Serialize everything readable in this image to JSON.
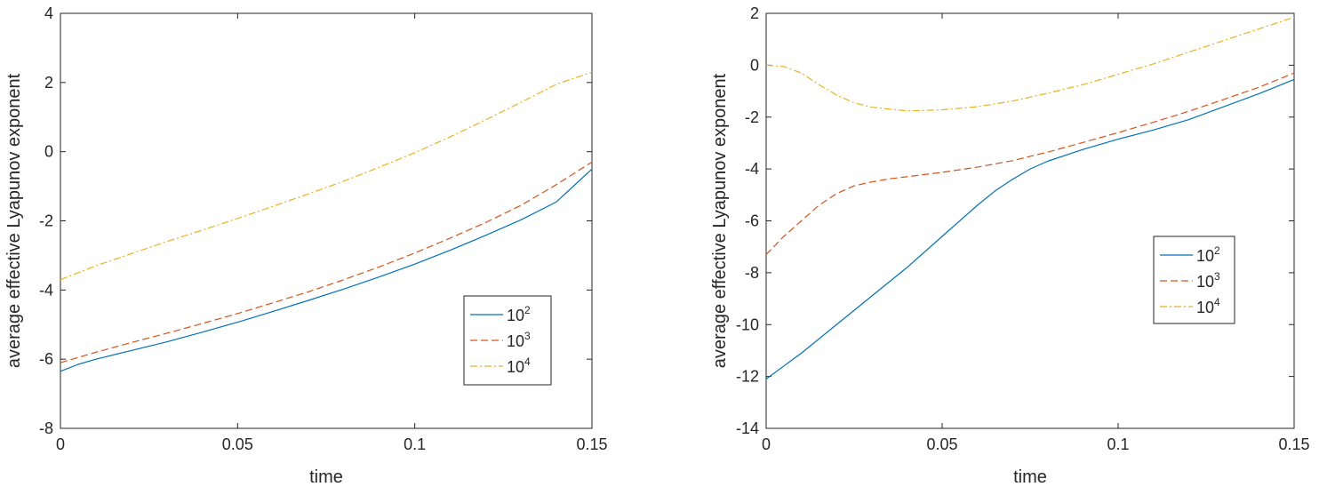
{
  "colors": {
    "series_1": "#0072BD",
    "series_2": "#D95319",
    "series_3": "#EDB120",
    "axis": "#262626"
  },
  "chart_data": [
    {
      "type": "line",
      "title": "",
      "xlabel": "time",
      "ylabel": "average effective Lyapunov exponent",
      "xlim": [
        0,
        0.15
      ],
      "ylim": [
        -8,
        4
      ],
      "xticks": [
        0,
        0.05,
        0.1,
        0.15
      ],
      "xtick_labels": [
        "0",
        "0.05",
        "0.1",
        "0.15"
      ],
      "yticks": [
        -8,
        -6,
        -4,
        -2,
        0,
        2,
        4
      ],
      "ytick_labels": [
        "-8",
        "-6",
        "-4",
        "-2",
        "0",
        "2",
        "4"
      ],
      "legend_position": "lower-right",
      "series": [
        {
          "name": "10^2",
          "base": "10",
          "exp": "2",
          "color": "#0072BD",
          "style": "solid",
          "x": [
            0,
            0.005,
            0.01,
            0.02,
            0.03,
            0.04,
            0.05,
            0.06,
            0.07,
            0.08,
            0.09,
            0.1,
            0.11,
            0.12,
            0.13,
            0.14,
            0.15
          ],
          "y": [
            -6.35,
            -6.15,
            -6.0,
            -5.75,
            -5.5,
            -5.22,
            -4.93,
            -4.62,
            -4.3,
            -3.97,
            -3.62,
            -3.25,
            -2.85,
            -2.42,
            -1.97,
            -1.45,
            -0.5
          ]
        },
        {
          "name": "10^3",
          "base": "10",
          "exp": "3",
          "color": "#D95319",
          "style": "dashed",
          "x": [
            0,
            0.005,
            0.01,
            0.02,
            0.03,
            0.04,
            0.05,
            0.06,
            0.07,
            0.08,
            0.09,
            0.1,
            0.11,
            0.12,
            0.13,
            0.14,
            0.15
          ],
          "y": [
            -6.1,
            -5.95,
            -5.8,
            -5.52,
            -5.25,
            -4.97,
            -4.68,
            -4.37,
            -4.05,
            -3.7,
            -3.33,
            -2.93,
            -2.5,
            -2.05,
            -1.55,
            -0.95,
            -0.3
          ]
        },
        {
          "name": "10^4",
          "base": "10",
          "exp": "4",
          "color": "#EDB120",
          "style": "dashdot",
          "x": [
            0,
            0.005,
            0.01,
            0.02,
            0.03,
            0.04,
            0.05,
            0.06,
            0.07,
            0.08,
            0.09,
            0.1,
            0.11,
            0.12,
            0.13,
            0.14,
            0.15
          ],
          "y": [
            -3.7,
            -3.5,
            -3.3,
            -2.95,
            -2.6,
            -2.27,
            -1.93,
            -1.58,
            -1.22,
            -0.85,
            -0.45,
            -0.03,
            0.43,
            0.92,
            1.43,
            1.95,
            2.3
          ]
        }
      ]
    },
    {
      "type": "line",
      "title": "",
      "xlabel": "time",
      "ylabel": "average effective Lyapunov exponent",
      "xlim": [
        0,
        0.15
      ],
      "ylim": [
        -14,
        2
      ],
      "xticks": [
        0,
        0.05,
        0.1,
        0.15
      ],
      "xtick_labels": [
        "0",
        "0.05",
        "0.1",
        "0.15"
      ],
      "yticks": [
        -14,
        -12,
        -10,
        -8,
        -6,
        -4,
        -2,
        0,
        2
      ],
      "ytick_labels": [
        "-14",
        "-12",
        "-10",
        "-8",
        "-6",
        "-4",
        "-2",
        "0",
        "2"
      ],
      "legend_position": "right",
      "series": [
        {
          "name": "10^2",
          "base": "10",
          "exp": "2",
          "color": "#0072BD",
          "style": "solid",
          "x": [
            0,
            0.005,
            0.01,
            0.02,
            0.03,
            0.04,
            0.05,
            0.06,
            0.065,
            0.07,
            0.075,
            0.08,
            0.09,
            0.1,
            0.11,
            0.12,
            0.13,
            0.14,
            0.15
          ],
          "y": [
            -12.1,
            -11.6,
            -11.1,
            -10.0,
            -8.9,
            -7.8,
            -6.6,
            -5.4,
            -4.85,
            -4.4,
            -4.0,
            -3.7,
            -3.25,
            -2.85,
            -2.5,
            -2.1,
            -1.6,
            -1.1,
            -0.55
          ]
        },
        {
          "name": "10^3",
          "base": "10",
          "exp": "3",
          "color": "#D95319",
          "style": "dashed",
          "x": [
            0,
            0.005,
            0.01,
            0.015,
            0.02,
            0.025,
            0.03,
            0.035,
            0.04,
            0.05,
            0.06,
            0.07,
            0.08,
            0.09,
            0.1,
            0.11,
            0.12,
            0.13,
            0.14,
            0.15
          ],
          "y": [
            -7.3,
            -6.6,
            -6.0,
            -5.4,
            -4.95,
            -4.65,
            -4.5,
            -4.38,
            -4.3,
            -4.13,
            -3.93,
            -3.68,
            -3.35,
            -2.98,
            -2.6,
            -2.2,
            -1.78,
            -1.32,
            -0.85,
            -0.3
          ]
        },
        {
          "name": "10^4",
          "base": "10",
          "exp": "4",
          "color": "#EDB120",
          "style": "dashdot",
          "x": [
            0,
            0.005,
            0.01,
            0.015,
            0.02,
            0.025,
            0.03,
            0.04,
            0.05,
            0.06,
            0.07,
            0.08,
            0.09,
            0.1,
            0.11,
            0.12,
            0.13,
            0.14,
            0.15
          ],
          "y": [
            0,
            -0.05,
            -0.3,
            -0.75,
            -1.15,
            -1.45,
            -1.62,
            -1.76,
            -1.72,
            -1.6,
            -1.38,
            -1.08,
            -0.75,
            -0.35,
            0.05,
            0.5,
            0.95,
            1.4,
            1.85
          ]
        }
      ]
    }
  ]
}
